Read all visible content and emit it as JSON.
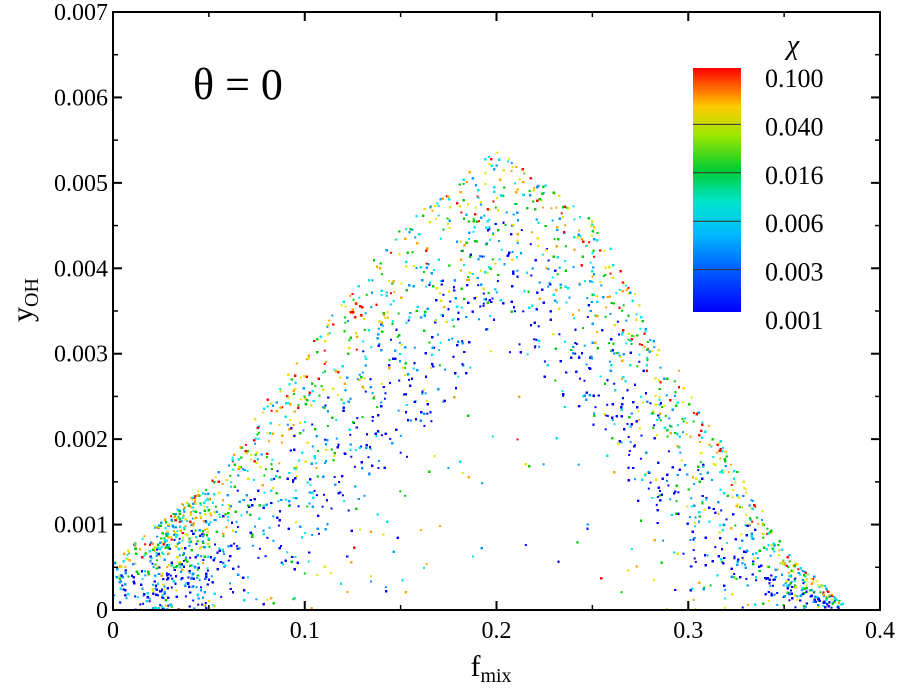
{
  "chart_data": {
    "type": "scatter",
    "title": "",
    "xlabel": "f",
    "xlabel_sub": "mix",
    "ylabel": "y",
    "ylabel_sub": "OH",
    "xlim": [
      0,
      0.4
    ],
    "ylim": [
      0,
      0.007
    ],
    "x_ticks": [
      0,
      0.1,
      0.2,
      0.3,
      0.4
    ],
    "x_tick_labels": [
      "0",
      "0.1",
      "0.2",
      "0.3",
      "0.4"
    ],
    "y_ticks": [
      0,
      0.001,
      0.002,
      0.003,
      0.004,
      0.005,
      0.006,
      0.007
    ],
    "y_tick_labels": [
      "0",
      "0.001",
      "0.002",
      "0.003",
      "0.004",
      "0.005",
      "0.006",
      "0.007"
    ],
    "grid": false,
    "annotation": "θ = 0",
    "colorbar": {
      "title": "χ",
      "scale": "log",
      "levels": [
        "0.100",
        "0.040",
        "0.016",
        "0.006",
        "0.003",
        "0.001"
      ],
      "placement": "top-right",
      "colors": [
        "#ff0000",
        "#ffa500",
        "#e6e600",
        "#00cc00",
        "#00e5e5",
        "#0099ff",
        "#0000ff"
      ]
    },
    "series": [
      {
        "description_values": "dense scatter cloud of y_OH versus f_mix colored by χ",
        "envelope": {
          "x": [
            0,
            0.05,
            0.1,
            0.15,
            0.2,
            0.25,
            0.3,
            0.35,
            0.38
          ],
          "y_max": [
            0.0006,
            0.0015,
            0.0031,
            0.0045,
            0.0054,
            0.0046,
            0.0026,
            0.0007,
            0.0001
          ],
          "y_min": [
            0,
            0.0001,
            0.0005,
            0.0018,
            0.0031,
            0.0022,
            0.0004,
            0.0001,
            0
          ]
        }
      }
    ]
  }
}
